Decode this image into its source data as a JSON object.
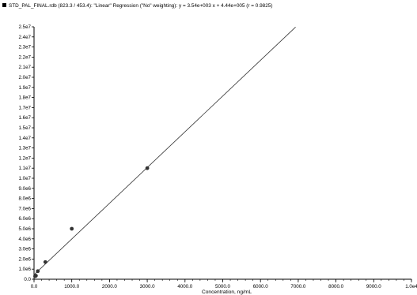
{
  "header": {
    "title": "STD_PAL_FINAL.rdb (823.3 / 453.4): \"Linear\" Regression (\"No\" weighting): y = 3.54e+003 x + 4.44e+005 (r = 0.9825)"
  },
  "chart_data": {
    "type": "scatter",
    "title": "",
    "xlabel": "Concentration, ng/mL",
    "ylabel": "",
    "xlim": [
      0,
      10000
    ],
    "ylim": [
      0,
      25000000
    ],
    "grid": false,
    "legend": "none",
    "x_ticks": [
      0,
      1000,
      2000,
      3000,
      4000,
      5000,
      6000,
      7000,
      8000,
      9000,
      10000
    ],
    "x_tick_labels": [
      "0.0",
      "1000.0",
      "2000.0",
      "3000.0",
      "4000.0",
      "5000.0",
      "6000.0",
      "7000.0",
      "8000.0",
      "9000.0",
      "1.0e4"
    ],
    "y_ticks": [
      0,
      1000000,
      2000000,
      3000000,
      4000000,
      5000000,
      6000000,
      7000000,
      8000000,
      9000000,
      10000000,
      11000000,
      12000000,
      13000000,
      14000000,
      15000000,
      16000000,
      17000000,
      18000000,
      19000000,
      20000000,
      21000000,
      22000000,
      23000000,
      24000000,
      25000000
    ],
    "y_tick_labels": [
      "0.0",
      "1.0e6",
      "2.0e6",
      "3.0e6",
      "4.0e6",
      "5.0e6",
      "6.0e6",
      "7.0e6",
      "8.0e6",
      "9.0e6",
      "1.0e7",
      "1.1e7",
      "1.2e7",
      "1.3e7",
      "1.4e7",
      "1.5e7",
      "1.6e7",
      "1.7e7",
      "1.8e7",
      "1.9e7",
      "2.0e7",
      "2.1e7",
      "2.2e7",
      "2.3e7",
      "2.4e7",
      "2.5e7"
    ],
    "points": [
      {
        "x": 30,
        "y": 300000
      },
      {
        "x": 50,
        "y": 350000
      },
      {
        "x": 100,
        "y": 800000
      },
      {
        "x": 300,
        "y": 1700000
      },
      {
        "x": 1000,
        "y": 5000000
      },
      {
        "x": 3000,
        "y": 11000000
      }
    ],
    "regression": {
      "slope": 3540,
      "intercept": 444000,
      "x_range": [
        0,
        6930
      ]
    },
    "colors": {
      "points": "#333333",
      "line": "#333333",
      "axes": "#000000"
    }
  }
}
